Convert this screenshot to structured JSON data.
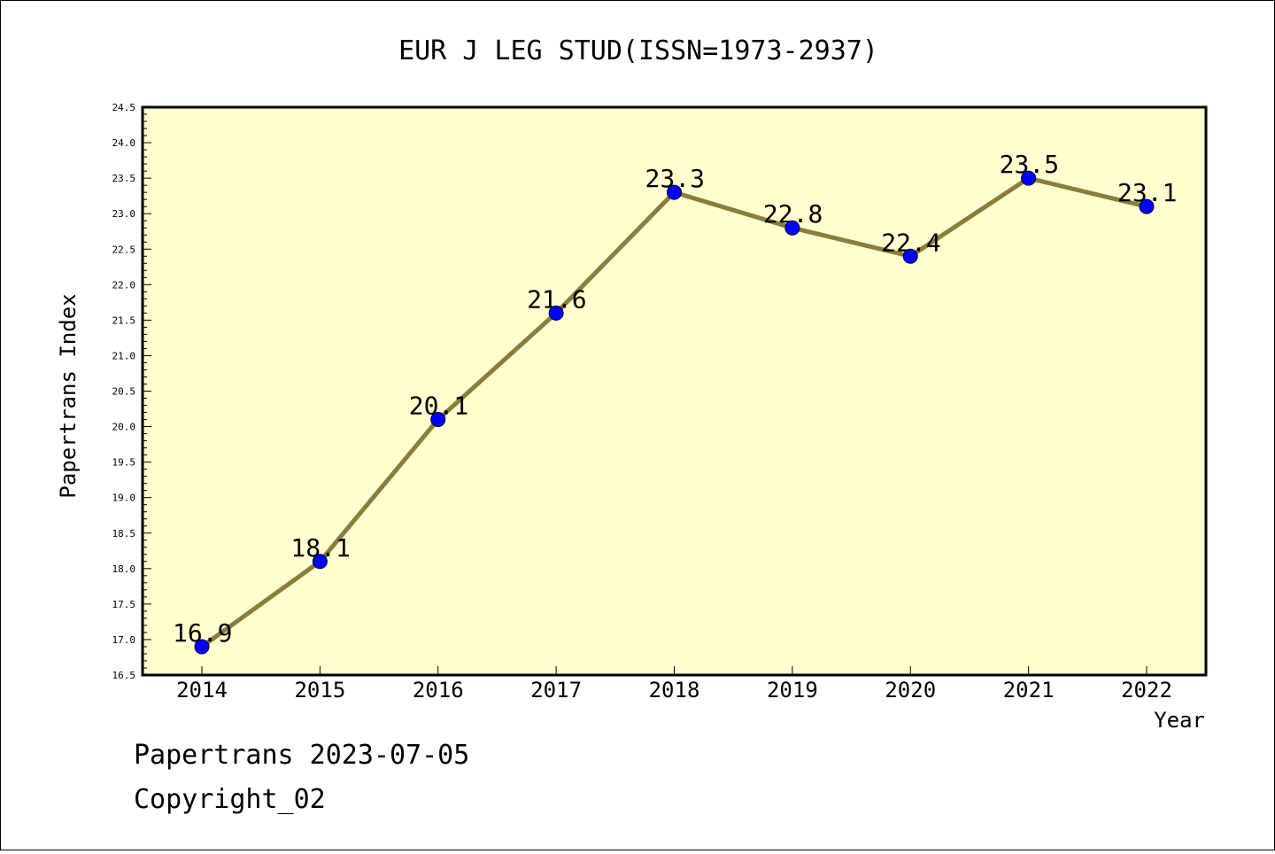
{
  "chart_data": {
    "type": "line",
    "title": "EUR J LEG STUD(ISSN=1973-2937)",
    "xlabel": "Year",
    "ylabel": "Papertrans Index",
    "categories": [
      "2014",
      "2015",
      "2016",
      "2017",
      "2018",
      "2019",
      "2020",
      "2021",
      "2022"
    ],
    "values": [
      16.9,
      18.1,
      20.1,
      21.6,
      23.3,
      22.8,
      22.4,
      23.5,
      23.1
    ],
    "data_labels": [
      "16.9",
      "18.1",
      "20.1",
      "21.6",
      "23.3",
      "22.8",
      "22.4",
      "23.5",
      "23.1"
    ],
    "ylim": [
      16.5,
      24.5
    ],
    "ytick_step": 0.5,
    "grid": false,
    "colors": {
      "plot_background": "#ffffd0",
      "line": "#8b7d3a",
      "marker": "#0000ff"
    }
  },
  "footer": {
    "line1": "Papertrans 2023-07-05",
    "line2": "Copyright_02"
  }
}
